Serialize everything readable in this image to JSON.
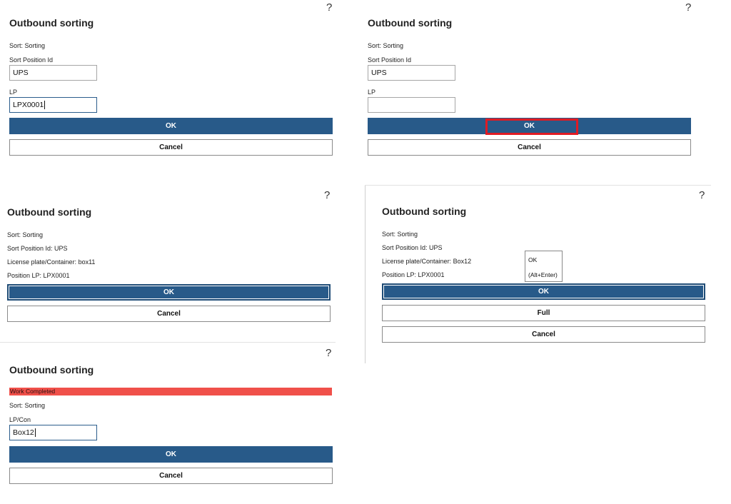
{
  "help_glyph": "?",
  "panel1": {
    "title": "Outbound sorting",
    "sort_text": "Sort: Sorting",
    "sort_position_label": "Sort Position Id",
    "sort_position_value": "UPS",
    "lp_label": "LP",
    "lp_value": "LPX0001",
    "ok_label": "OK",
    "cancel_label": "Cancel"
  },
  "panel2": {
    "title": "Outbound sorting",
    "sort_text": "Sort: Sorting",
    "sort_position_label": "Sort Position Id",
    "sort_position_value": "UPS",
    "lp_label": "LP",
    "lp_value": "",
    "ok_label": "OK",
    "cancel_label": "Cancel",
    "highlight_color": "#e01b24"
  },
  "panel3": {
    "title": "Outbound sorting",
    "sort_text": "Sort: Sorting",
    "sort_position_text": "Sort Position Id: UPS",
    "container_text": "License plate/Container: box11",
    "position_lp_text": "Position LP: LPX0001",
    "ok_label": "OK",
    "cancel_label": "Cancel"
  },
  "panel4": {
    "title": "Outbound sorting",
    "sort_text": "Sort: Sorting",
    "sort_position_text": "Sort Position Id: UPS",
    "container_text": "License plate/Container: Box12",
    "position_lp_text": "Position LP: LPX0001",
    "ok_label": "OK",
    "full_label": "Full",
    "cancel_label": "Cancel",
    "tooltip_line1": "OK",
    "tooltip_line2": "(Alt+Enter)"
  },
  "panel5": {
    "title": "Outbound sorting",
    "banner_text": "Work Completed",
    "banner_color": "#f0504a",
    "sort_text": "Sort: Sorting",
    "lpcon_label": "LP/Con",
    "lpcon_value": "Box12",
    "ok_label": "OK",
    "cancel_label": "Cancel"
  },
  "colors": {
    "primary": "#285a89",
    "text": "#1a1a1a"
  }
}
